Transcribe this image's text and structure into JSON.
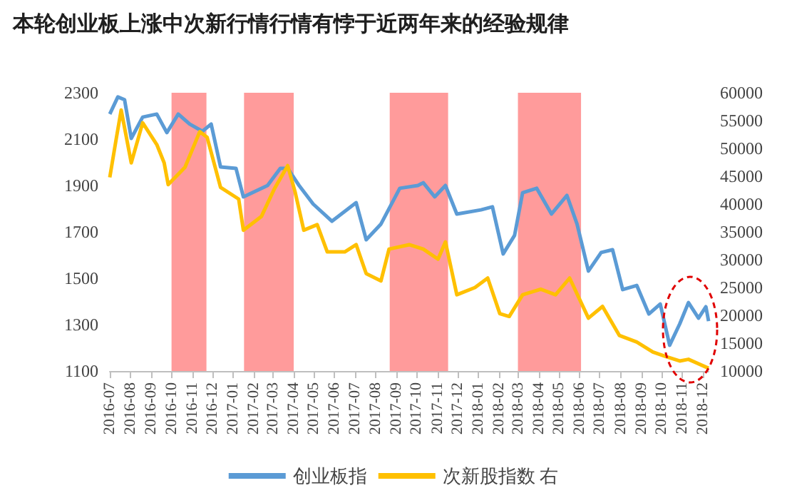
{
  "chart_data": {
    "type": "line",
    "title": "本轮创业板上涨中次新行情行情有悖于近两年来的经验规律",
    "series": [
      {
        "name": "创业板指",
        "color": "#5b9bd5",
        "x": [
          "2016-07-01",
          "2016-07-13",
          "2016-07-23",
          "2016-08-02",
          "2016-08-19",
          "2016-09-09",
          "2016-09-24",
          "2016-10-11",
          "2016-10-28",
          "2016-11-16",
          "2016-11-29",
          "2016-12-13",
          "2017-01-05",
          "2017-01-16",
          "2017-02-21",
          "2017-03-12",
          "2017-03-23",
          "2017-04-09",
          "2017-04-30",
          "2017-05-28",
          "2017-07-03",
          "2017-07-18",
          "2017-08-09",
          "2017-09-06",
          "2017-10-03",
          "2017-10-11",
          "2017-10-28",
          "2017-11-13",
          "2017-11-30",
          "2018-01-05",
          "2018-01-22",
          "2018-02-07",
          "2018-02-24",
          "2018-03-08",
          "2018-03-29",
          "2018-04-20",
          "2018-05-13",
          "2018-05-28",
          "2018-06-14",
          "2018-07-03",
          "2018-07-20",
          "2018-08-04",
          "2018-08-25",
          "2018-09-12",
          "2018-09-29",
          "2018-10-13",
          "2018-10-28",
          "2018-11-10",
          "2018-11-25",
          "2018-12-06",
          "2018-12-10"
        ],
        "values": [
          2208,
          2282,
          2270,
          2103,
          2195,
          2208,
          2128,
          2208,
          2165,
          2134,
          2165,
          1980,
          1974,
          1851,
          1900,
          1974,
          1974,
          1900,
          1820,
          1746,
          1826,
          1666,
          1734,
          1888,
          1900,
          1912,
          1851,
          1900,
          1777,
          1795,
          1808,
          1605,
          1685,
          1869,
          1888,
          1777,
          1857,
          1734,
          1531,
          1611,
          1623,
          1451,
          1469,
          1346,
          1389,
          1211,
          1303,
          1395,
          1328,
          1377,
          1315
        ]
      },
      {
        "name": "次新股指数 右",
        "color": "#ffc000",
        "axis": "y2",
        "x": [
          "2016-07-01",
          "2016-07-11",
          "2016-07-18",
          "2016-08-02",
          "2016-08-19",
          "2016-09-09",
          "2016-09-20",
          "2016-09-26",
          "2016-10-21",
          "2016-11-12",
          "2016-11-23",
          "2016-12-13",
          "2017-01-09",
          "2017-01-16",
          "2017-02-12",
          "2017-03-03",
          "2017-03-23",
          "2017-04-03",
          "2017-04-16",
          "2017-05-06",
          "2017-05-21",
          "2017-06-16",
          "2017-07-03",
          "2017-07-18",
          "2017-08-09",
          "2017-08-21",
          "2017-09-20",
          "2017-10-11",
          "2017-11-02",
          "2017-11-13",
          "2017-11-30",
          "2017-12-27",
          "2018-01-15",
          "2018-02-02",
          "2018-02-16",
          "2018-03-08",
          "2018-04-04",
          "2018-04-26",
          "2018-05-17",
          "2018-06-14",
          "2018-07-05",
          "2018-07-30",
          "2018-08-25",
          "2018-09-18",
          "2018-10-07",
          "2018-10-28",
          "2018-11-10",
          "2018-12-10"
        ],
        "values": [
          44800,
          52000,
          56900,
          47400,
          54600,
          50700,
          47400,
          43500,
          46600,
          53000,
          52000,
          43000,
          40900,
          35300,
          37800,
          42700,
          46900,
          42200,
          35300,
          36300,
          31400,
          31400,
          32700,
          27500,
          26200,
          31900,
          32700,
          31900,
          30100,
          33200,
          23700,
          25000,
          26700,
          20300,
          19800,
          23700,
          24700,
          23700,
          26700,
          19500,
          21600,
          16400,
          15200,
          13400,
          12600,
          11800,
          12100,
          10500
        ]
      }
    ],
    "xlim": [
      "2016-07-01",
      "2018-12-10"
    ],
    "xticks": [
      "2016-07",
      "2016-08",
      "2016-09",
      "2016-10",
      "2016-11",
      "2016-12",
      "2017-01",
      "2017-02",
      "2017-03",
      "2017-04",
      "2017-05",
      "2017-06",
      "2017-07",
      "2017-08",
      "2017-09",
      "2017-10",
      "2017-11",
      "2017-12",
      "2018-01",
      "2018-02",
      "2018-03",
      "2018-04",
      "2018-05",
      "2018-06",
      "2018-07",
      "2018-08",
      "2018-09",
      "2018-10",
      "2018-11",
      "2018-12"
    ],
    "ylim": [
      1100,
      2300
    ],
    "yticks": [
      1100,
      1300,
      1500,
      1700,
      1900,
      2100,
      2300
    ],
    "y2lim": [
      10000,
      60000
    ],
    "y2ticks": [
      10000,
      15000,
      20000,
      25000,
      30000,
      35000,
      40000,
      45000,
      50000,
      55000,
      60000
    ],
    "bands": [
      {
        "axis": "x",
        "from": "2016-10-01",
        "to": "2016-11-22",
        "color": "#ff8a8a"
      },
      {
        "axis": "x",
        "from": "2017-01-17",
        "to": "2017-04-01",
        "color": "#ff8a8a"
      },
      {
        "axis": "x",
        "from": "2017-08-22",
        "to": "2017-11-17",
        "color": "#ff8a8a"
      },
      {
        "axis": "x",
        "from": "2018-03-01",
        "to": "2018-06-03",
        "color": "#ff8a8a"
      }
    ],
    "grid": false,
    "legend": "bottom",
    "marker": "none",
    "line_style": "solid"
  }
}
